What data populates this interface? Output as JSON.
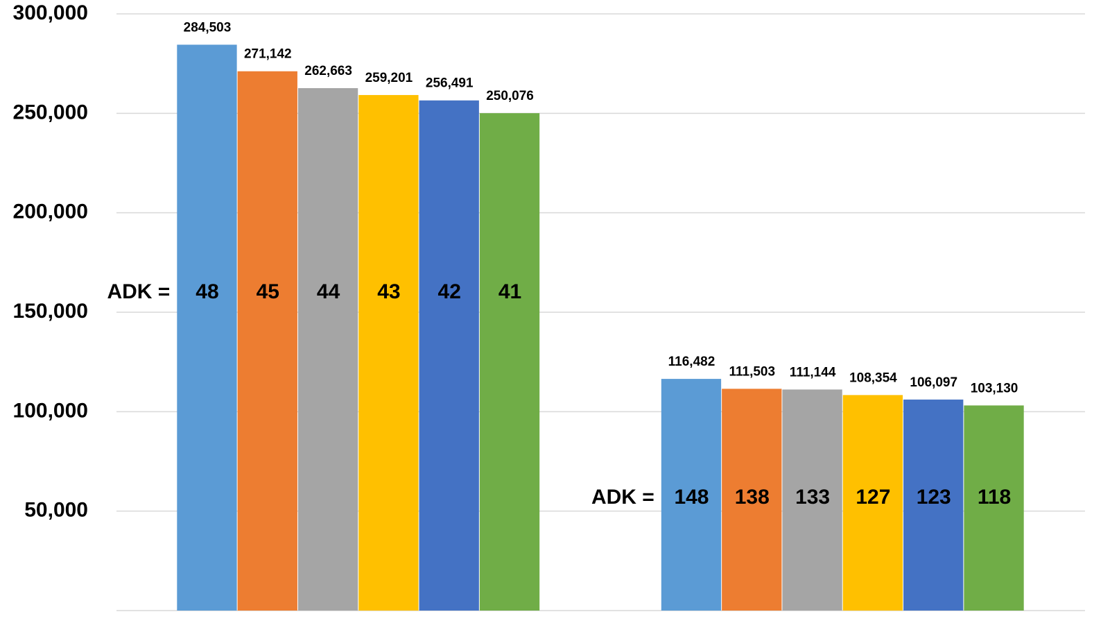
{
  "chart_data": {
    "type": "bar",
    "categories": [
      null,
      null
    ],
    "annotation_label": "ADK =",
    "series": [
      {
        "color": "#5b9bd5",
        "values": [
          284503,
          116482
        ],
        "value_labels": [
          "284,503",
          "116,482"
        ],
        "adk": [
          48,
          148
        ]
      },
      {
        "color": "#ed7d31",
        "values": [
          271142,
          111503
        ],
        "value_labels": [
          "271,142",
          "111,503"
        ],
        "adk": [
          45,
          138
        ]
      },
      {
        "color": "#a5a5a5",
        "values": [
          262663,
          111144
        ],
        "value_labels": [
          "262,663",
          "111,144"
        ],
        "adk": [
          44,
          133
        ]
      },
      {
        "color": "#ffc000",
        "values": [
          259201,
          108354
        ],
        "value_labels": [
          "259,201",
          "108,354"
        ],
        "adk": [
          43,
          127
        ]
      },
      {
        "color": "#4472c4",
        "values": [
          256491,
          106097
        ],
        "value_labels": [
          "256,491",
          "106,097"
        ],
        "adk": [
          42,
          123
        ]
      },
      {
        "color": "#70ad47",
        "values": [
          250076,
          103130
        ],
        "value_labels": [
          "250,076",
          "103,130"
        ],
        "adk": [
          41,
          118
        ]
      }
    ],
    "ylim": [
      0,
      300000
    ],
    "yticks": [
      {
        "value": 50000,
        "label": "50,000"
      },
      {
        "value": 100000,
        "label": "100,000"
      },
      {
        "value": 150000,
        "label": "150,000"
      },
      {
        "value": 200000,
        "label": "200,000"
      },
      {
        "value": 250000,
        "label": "250,000"
      },
      {
        "value": 300000,
        "label": "300,000"
      }
    ],
    "grid": true
  }
}
